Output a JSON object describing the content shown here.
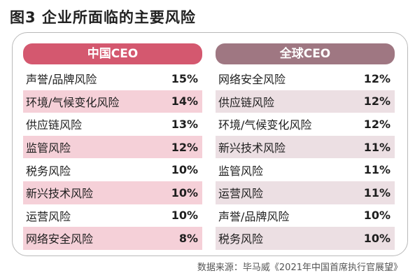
{
  "title": "图3  企业所面临的主要风险",
  "china": {
    "header": "中国CEO",
    "rows": [
      {
        "label": "声誉/品牌风险",
        "value": "15%"
      },
      {
        "label": "环境/气候变化风险",
        "value": "14%"
      },
      {
        "label": "供应链风险",
        "value": "13%"
      },
      {
        "label": "监管风险",
        "value": "12%"
      },
      {
        "label": "税务风险",
        "value": "10%"
      },
      {
        "label": "新兴技术风险",
        "value": "10%"
      },
      {
        "label": "运营风险",
        "value": "10%"
      },
      {
        "label": "网络安全风险",
        "value": "8%"
      }
    ]
  },
  "global": {
    "header": "全球CEO",
    "rows": [
      {
        "label": "网络安全风险",
        "value": "12%"
      },
      {
        "label": "供应链风险",
        "value": "12%"
      },
      {
        "label": "环境/气候变化风险",
        "value": "12%"
      },
      {
        "label": "新兴技术风险",
        "value": "11%"
      },
      {
        "label": "监管风险",
        "value": "11%"
      },
      {
        "label": "运营风险",
        "value": "11%"
      },
      {
        "label": "声誉/品牌风险",
        "value": "10%"
      },
      {
        "label": "税务风险",
        "value": "10%"
      }
    ]
  },
  "source": "数据来源：毕马威《2021年中国首席执行官展望》",
  "colors": {
    "china_header": "#d4586f",
    "china_shade": "#f5d0d8",
    "global_header": "#9f7782",
    "global_shade": "#ecdfe3"
  }
}
